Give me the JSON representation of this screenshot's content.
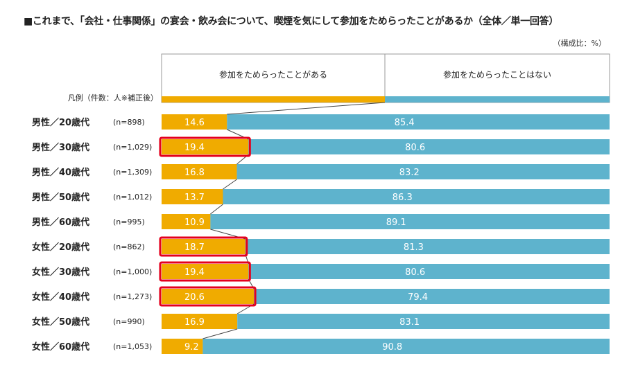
{
  "title": "■これまで、「会社・仕事関係」の宴会・飲み会について、喫煙を気にして参加をためらったことがあるか（全体／単一回答）",
  "unit_label": "（構成比：%）",
  "legend_caption": "凡例（件数：人※補正後）",
  "colors": {
    "hesitated": "#f0ab00",
    "not_hesitated": "#5eb3cd",
    "highlight": "#e4001e",
    "connector": "#444444",
    "value_text": "#ffffff"
  },
  "chart_data": {
    "type": "bar",
    "orientation": "horizontal",
    "stacked": true,
    "xlim": [
      0,
      100
    ],
    "title": "■これまで、「会社・仕事関係」の宴会・飲み会について、喫煙を気にして参加をためらったことがあるか（全体／単一回答）",
    "legend": [
      "参加をためらったことがある",
      "参加をためらったことはない"
    ],
    "categories": [
      "男性／20歳代",
      "男性／30歳代",
      "男性／40歳代",
      "男性／50歳代",
      "男性／60歳代",
      "女性／20歳代",
      "女性／30歳代",
      "女性／40歳代",
      "女性／50歳代",
      "女性／60歳代"
    ],
    "counts": [
      "(n=898)",
      "(n=1,029)",
      "(n=1,309)",
      "(n=1,012)",
      "(n=995)",
      "(n=862)",
      "(n=1,000)",
      "(n=1,273)",
      "(n=990)",
      "(n=1,053)"
    ],
    "series": [
      {
        "name": "参加をためらったことがある",
        "values": [
          14.6,
          19.4,
          16.8,
          13.7,
          10.9,
          18.7,
          19.4,
          20.6,
          16.9,
          9.2
        ]
      },
      {
        "name": "参加をためらったことはない",
        "values": [
          85.4,
          80.6,
          83.2,
          86.3,
          89.1,
          81.3,
          80.6,
          79.4,
          83.1,
          90.8
        ]
      }
    ],
    "highlighted_categories": [
      "男性／30歳代",
      "女性／20歳代",
      "女性／30歳代",
      "女性／40歳代"
    ],
    "connector_lines": true
  }
}
